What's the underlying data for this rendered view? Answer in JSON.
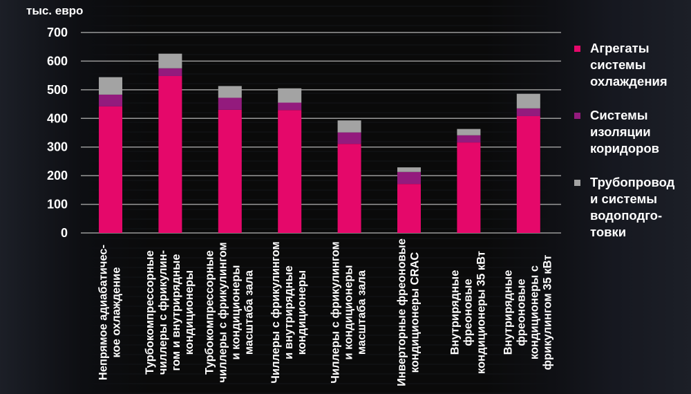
{
  "chart_data": {
    "type": "bar",
    "stacked": true,
    "ylabel": "тыс. евро",
    "ylim": [
      0,
      700
    ],
    "yticks": [
      "0",
      "100",
      "200",
      "300",
      "400",
      "500",
      "600",
      "700"
    ],
    "grid": true,
    "legend_position": "right",
    "categories": [
      [
        "Непрямое адиабатичес-",
        "кое охлаждение"
      ],
      [
        "Турбокомпрессорные",
        "чиллеры с фрикулин-",
        "гом и внутрирядные",
        "кондиционеры"
      ],
      [
        "Турбокомпрессорные",
        "чиллеры с фрикулингом",
        "и кондиционеры",
        "масштаба зала"
      ],
      [
        "Чиллеры с фрикулингом",
        "и внутрирядные",
        "кондиционеры"
      ],
      [
        "Чиллеры с фрикулингом",
        "и кондиционеры",
        "масштаба зала"
      ],
      [
        "Инверторные фреоновые",
        "кондиционеры CRAC"
      ],
      [
        "Внутрирядные",
        "фреоновые",
        "кондиционеры 35 кВт"
      ],
      [
        "Внутрирядные",
        "фреоновые",
        "кондиционеры с",
        "фрикулингом 35 кВт"
      ]
    ],
    "series": [
      {
        "name": [
          "Агрегаты",
          "системы",
          "охлаждения"
        ],
        "color": "#e5086a",
        "values": [
          442,
          548,
          430,
          429,
          311,
          171,
          316,
          408
        ]
      },
      {
        "name": [
          "Системы",
          "изоляции",
          "коридоров"
        ],
        "color": "#931b7d",
        "values": [
          41,
          27,
          42,
          26,
          40,
          42,
          25,
          27
        ]
      },
      {
        "name": [
          "Трубопровод",
          "и системы",
          "водоподго-",
          "товки"
        ],
        "color": "#a3a3a3",
        "values": [
          61,
          51,
          41,
          50,
          42,
          16,
          22,
          51
        ]
      }
    ]
  }
}
